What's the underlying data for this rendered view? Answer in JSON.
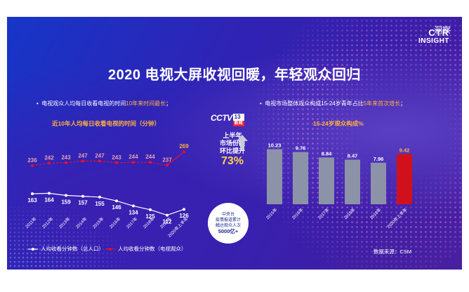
{
  "slide": {
    "title": "2020 电视大屏收视回暖，年轻观众回归",
    "logo": {
      "line1": "CTR",
      "line2": "INSIGHT",
      "cn": "洞察"
    },
    "source": "数据来源：CSM"
  },
  "left_panel": {
    "bullet_prefix": "电视观众人均每日收看电视的时间",
    "bullet_highlight": "10年来时间最长",
    "bullet_suffix": "；",
    "subtitle": "近10年人均每日收看电视的时间（分钟）",
    "legend": [
      {
        "label": "人均收看分钟数（总人口）",
        "color": "#ffffff"
      },
      {
        "label": "人均收看分钟数（电视观众）",
        "color": "#e8102a"
      }
    ]
  },
  "middle": {
    "logo_mark": "CCTV",
    "logo_num": "13",
    "logo_news": "新闻",
    "lines": [
      "上半年",
      "市场份额",
      "环比提升"
    ],
    "percent": "73%",
    "circle_lines": [
      "中央台",
      "疫情报道累计",
      "触达观众人次"
    ],
    "circle_big": "5000亿+"
  },
  "right_panel": {
    "bullet_prefix": "电视市场整体观众构成15-24岁青年占比",
    "bullet_highlight": "5年来首次增长",
    "bullet_suffix": "；",
    "subtitle": "15-24岁观众构成%"
  },
  "colors": {
    "bar_gray": "#8c93a8",
    "bar_red": "#d0111b",
    "accent_orange": "#ffb13b",
    "line_red": "#e8102a"
  },
  "chart_data": [
    {
      "type": "line",
      "title": "近10年人均每日收看电视的时间（分钟）",
      "categories": [
        "2011年",
        "2012年",
        "2013年",
        "2014年",
        "2015年",
        "2016年",
        "2017年",
        "2018年",
        "2019年",
        "2020年上半年"
      ],
      "series": [
        {
          "name": "人均收看分钟数（总人口）",
          "values": [
            163,
            164,
            159,
            157,
            155,
            146,
            134,
            125,
            112,
            126
          ],
          "color": "#ffffff"
        },
        {
          "name": "人均收看分钟数（电视观众）",
          "values": [
            236,
            242,
            243,
            247,
            247,
            243,
            244,
            244,
            237,
            269
          ],
          "color": "#e8102a"
        }
      ]
    },
    {
      "type": "bar",
      "title": "15-24岁观众构成%",
      "categories": [
        "2015年",
        "2016年",
        "2017年",
        "2018年",
        "2019年",
        "2020年上半年"
      ],
      "values": [
        10.23,
        9.76,
        8.84,
        8.47,
        7.96,
        9.42
      ],
      "highlight_index": 5
    }
  ]
}
